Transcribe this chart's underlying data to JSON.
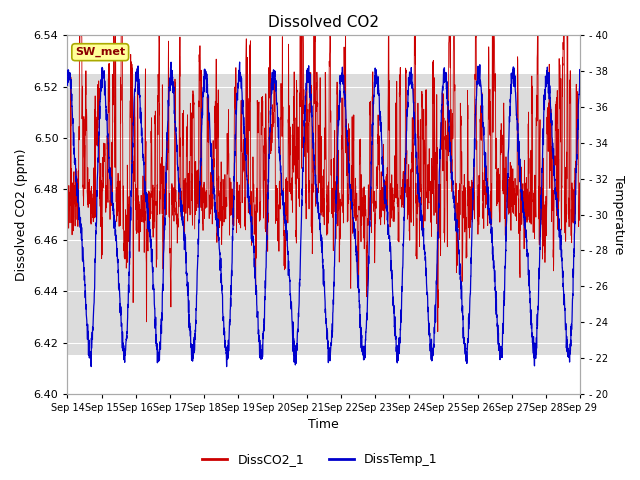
{
  "title": "Dissolved CO2",
  "xlabel": "Time",
  "ylabel_left": "Dissolved CO2 (ppm)",
  "ylabel_right": "Temperature",
  "ylim_left": [
    6.4,
    6.54
  ],
  "ylim_right": [
    20,
    40
  ],
  "xtick_labels": [
    "Sep 14",
    "Sep 15",
    "Sep 16",
    "Sep 17",
    "Sep 18",
    "Sep 19",
    "Sep 20",
    "Sep 21",
    "Sep 22",
    "Sep 23",
    "Sep 24",
    "Sep 25",
    "Sep 26",
    "Sep 27",
    "Sep 28",
    "Sep 29"
  ],
  "color_co2": "#cc0000",
  "color_temp": "#0000cc",
  "color_bg_band": "#dcdcdc",
  "legend_co2": "DissCO2_1",
  "legend_temp": "DissTemp_1",
  "annotation_text": "SW_met",
  "annotation_color": "#8b0000",
  "annotation_bg": "#ffff99",
  "annotation_border": "#aaaa00",
  "n_points": 3000
}
